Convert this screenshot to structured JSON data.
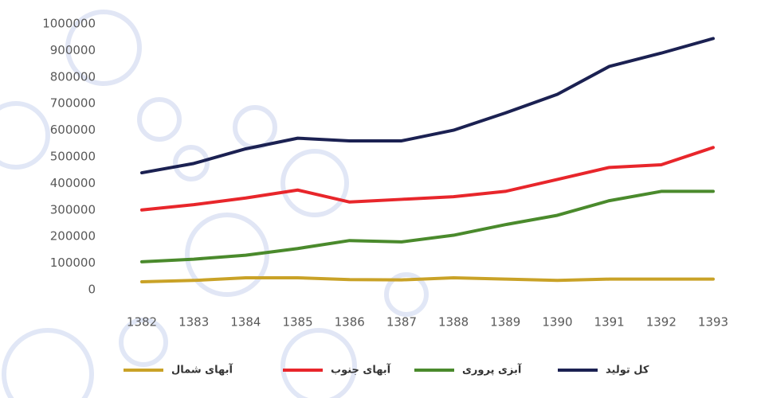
{
  "chart_data": {
    "type": "line",
    "categories": [
      "1382",
      "1383",
      "1384",
      "1385",
      "1386",
      "1387",
      "1388",
      "1389",
      "1390",
      "1391",
      "1392",
      "1393"
    ],
    "series": [
      {
        "name": "آبهای شمال",
        "color": "#c9a227",
        "values": [
          30000,
          35000,
          45000,
          45000,
          38000,
          37000,
          45000,
          40000,
          35000,
          40000,
          40000,
          40000
        ]
      },
      {
        "name": "آبهای جنوب",
        "color": "#e8262b",
        "values": [
          300000,
          320000,
          345000,
          375000,
          330000,
          340000,
          350000,
          370000,
          415000,
          460000,
          470000,
          535000
        ]
      },
      {
        "name": "آبزی پروری",
        "color": "#4a8a2c",
        "values": [
          105000,
          115000,
          130000,
          155000,
          185000,
          180000,
          205000,
          245000,
          280000,
          335000,
          370000,
          370000
        ]
      },
      {
        "name": "کل تولید",
        "color": "#1b2152",
        "values": [
          440000,
          475000,
          530000,
          570000,
          560000,
          560000,
          600000,
          665000,
          735000,
          840000,
          890000,
          945000
        ]
      }
    ],
    "ylim": [
      0,
      1000000
    ],
    "yticks": [
      0,
      100000,
      200000,
      300000,
      400000,
      500000,
      600000,
      700000,
      800000,
      900000,
      1000000
    ],
    "grid": false
  }
}
